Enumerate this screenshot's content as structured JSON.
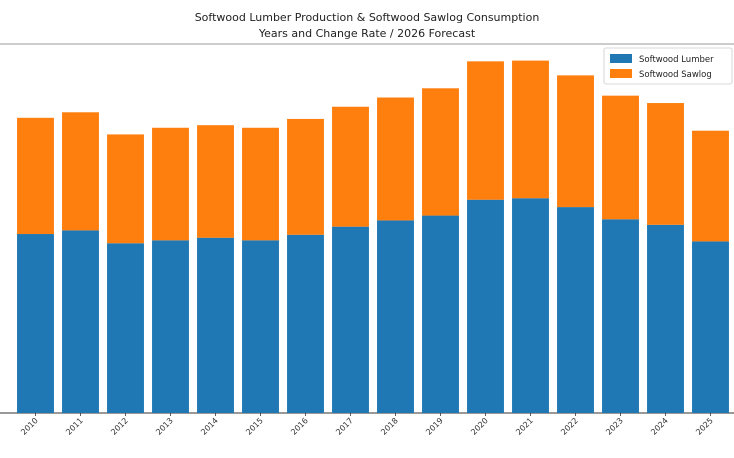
{
  "chart_data": {
    "type": "bar",
    "stacked": true,
    "title": "Softwood Lumber Production & Softwood Sawlog Consumption",
    "subtitle": "Years and Change Rate / 2026 Forecast",
    "xlabel": "",
    "ylabel": "",
    "categories": [
      "2010",
      "2011",
      "2012",
      "2013",
      "2014",
      "2015",
      "2016",
      "2017",
      "2018",
      "2019",
      "2020",
      "2021",
      "2022",
      "2023",
      "2024",
      "2025"
    ],
    "series": [
      {
        "name": "Softwood Lumber",
        "color": "#1f77b4",
        "values": [
          48.5,
          49.5,
          46.0,
          46.8,
          47.5,
          46.8,
          48.3,
          50.5,
          52.2,
          53.5,
          57.8,
          58.2,
          55.8,
          52.5,
          51.0,
          46.5
        ]
      },
      {
        "name": "Softwood Sawlog",
        "color": "#ff7f0e",
        "values": [
          31.5,
          32.0,
          29.5,
          30.5,
          30.5,
          30.5,
          31.4,
          32.5,
          33.3,
          34.5,
          37.5,
          37.3,
          35.7,
          33.5,
          33.0,
          30.0
        ]
      }
    ],
    "ylim": [
      0,
      100
    ],
    "legend_position": "top-right",
    "grid": false,
    "x_tick_rotation": 45
  }
}
